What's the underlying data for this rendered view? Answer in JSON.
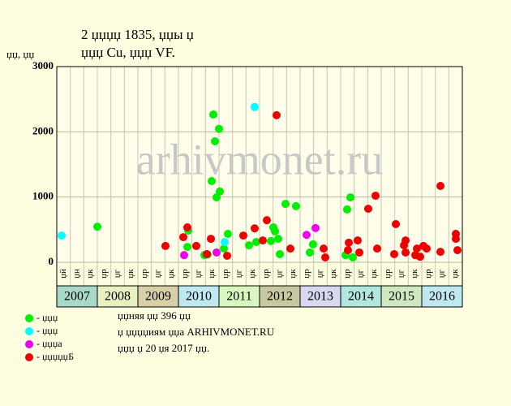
{
  "chart_data": {
    "type": "scatter",
    "title": "2 џџџџ 1835, џџы џ",
    "subtitle": "џџџ Cu, џџџ VF.",
    "y_label": "џџ, џџ",
    "xlim": [
      2007,
      2017
    ],
    "ylim": [
      0,
      3000
    ],
    "yticks": [
      0,
      1000,
      2000,
      3000
    ],
    "grid": true,
    "years": [
      "2007",
      "2008",
      "2009",
      "2010",
      "2011",
      "2012",
      "2013",
      "2014",
      "2015",
      "2016"
    ],
    "year_colors": [
      "#a8d8c8",
      "#e8f0c0",
      "#d8d0a8",
      "#c0e8f0",
      "#d8f8c0",
      "#c8c8a0",
      "#d8d8f0",
      "#b0e8e0",
      "#d0e8c0",
      "#c0e8f0"
    ],
    "sub_labels": [
      "џй",
      "џн",
      "џк",
      "џр",
      "џг",
      "џк",
      "џр",
      "џг",
      "џк",
      "џр",
      "џг",
      "џк",
      "џр",
      "џг",
      "џк",
      "џр",
      "џг",
      "џк",
      "џр",
      "џг",
      "џк",
      "џр",
      "џг",
      "џк",
      "џр",
      "џг",
      "џк",
      "џр",
      "џг",
      "џк"
    ],
    "series": [
      {
        "name": "- џџџ",
        "color": "#00ee00",
        "x": [
          2008.0,
          2010.22,
          2010.24,
          2010.64,
          2010.72,
          2010.82,
          2010.86,
          2010.9,
          2010.94,
          2011.0,
          2011.02,
          2011.12,
          2011.22,
          2011.74,
          2011.92,
          2012.28,
          2012.34,
          2012.38,
          2012.46,
          2012.5,
          2012.64,
          2012.9,
          2013.24,
          2013.32,
          2014.16,
          2014.24,
          2014.12,
          2014.3
        ],
        "values": [
          545,
          235,
          485,
          110,
          120,
          1245,
          2265,
          1855,
          995,
          2045,
          1085,
          210,
          435,
          260,
          310,
          325,
          535,
          475,
          360,
          125,
          895,
          860,
          150,
          275,
          810,
          995,
          110,
          75
        ]
      },
      {
        "name": "- џџџ",
        "color": "#00ffff",
        "x": [
          2007.12,
          2011.14,
          2011.88
        ],
        "values": [
          410,
          310,
          2380
        ]
      },
      {
        "name": "- џџџа",
        "color": "#ee00ee",
        "x": [
          2010.14,
          2010.94,
          2013.16,
          2013.38
        ],
        "values": [
          110,
          150,
          420,
          525
        ]
      },
      {
        "name": "- џџџџџБ",
        "color": "#ee0000",
        "x": [
          2009.68,
          2010.12,
          2010.22,
          2010.44,
          2010.7,
          2010.8,
          2011.2,
          2011.6,
          2011.88,
          2012.08,
          2012.18,
          2012.42,
          2012.76,
          2013.58,
          2013.62,
          2014.18,
          2014.2,
          2014.42,
          2014.46,
          2014.68,
          2014.86,
          2014.9,
          2015.32,
          2015.36,
          2015.56,
          2015.6,
          2015.6,
          2015.84,
          2015.88,
          2015.96,
          2016.04,
          2016.12,
          2016.46,
          2016.46,
          2016.84,
          2016.84,
          2016.88
        ],
        "values": [
          250,
          385,
          535,
          250,
          125,
          360,
          100,
          410,
          520,
          335,
          645,
          2255,
          210,
          210,
          75,
          185,
          300,
          335,
          150,
          820,
          1020,
          210,
          125,
          585,
          260,
          335,
          150,
          110,
          210,
          85,
          250,
          210,
          1170,
          160,
          435,
          360,
          185
        ]
      }
    ],
    "notes": [
      "џџняя џџ 396 џџ",
      "џ џџџџиям џџа ARHIVMONET.RU",
      "џџџ џ 20 џя 2017 џџ."
    ],
    "watermark": "arhivmonet.ru"
  }
}
